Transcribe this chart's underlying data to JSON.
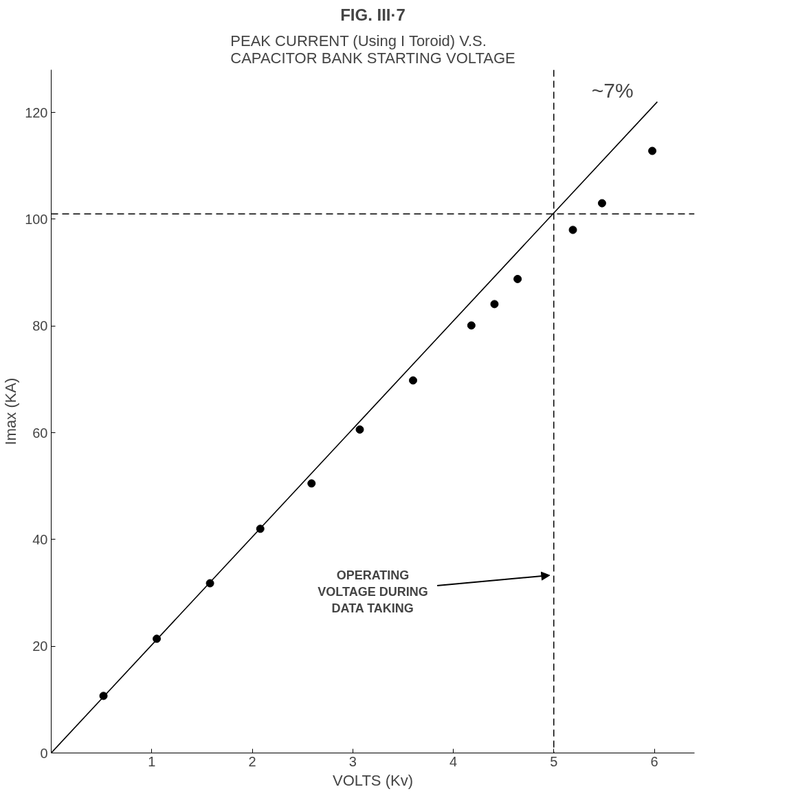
{
  "chart_data": {
    "type": "scatter",
    "title": "FIG. III·7",
    "subtitle": "PEAK CURRENT (Using I Toroid) V.S.\nCAPACITOR BANK STARTING VOLTAGE",
    "xlabel": "VOLTS (Kv)",
    "ylabel": "Imax (KA)",
    "series": [
      {
        "color": "#000000",
        "marker": "circle",
        "x": [
          0.52,
          1.05,
          1.58,
          2.08,
          2.59,
          3.07,
          3.6,
          4.18,
          4.41,
          4.64,
          5.19,
          5.48,
          5.98
        ],
        "values": [
          10.7,
          21.4,
          31.8,
          42.0,
          50.5,
          60.6,
          69.8,
          80.1,
          84.1,
          88.8,
          98.0,
          103.0,
          112.8
        ]
      },
      {
        "type": "line",
        "color": "#000000",
        "x": [
          0,
          6.03
        ],
        "values": [
          0,
          122
        ]
      }
    ],
    "xlim": [
      0,
      6.4
    ],
    "ylim": [
      0,
      128
    ],
    "xticks": [
      1,
      2,
      3,
      4,
      5,
      6
    ],
    "yticks": [
      0,
      20,
      40,
      60,
      80,
      100,
      120
    ],
    "ref_lines": [
      {
        "axis": "y",
        "value": 101,
        "label": null,
        "color": "#000000",
        "line_style": "dashed"
      },
      {
        "axis": "x",
        "value": 5,
        "label": null,
        "color": "#000000",
        "line_style": "dashed"
      }
    ],
    "annotations": [
      "OPERATING\nVOLTAGE DURING\nDATA TAKING",
      "~7%"
    ],
    "grid": false
  }
}
